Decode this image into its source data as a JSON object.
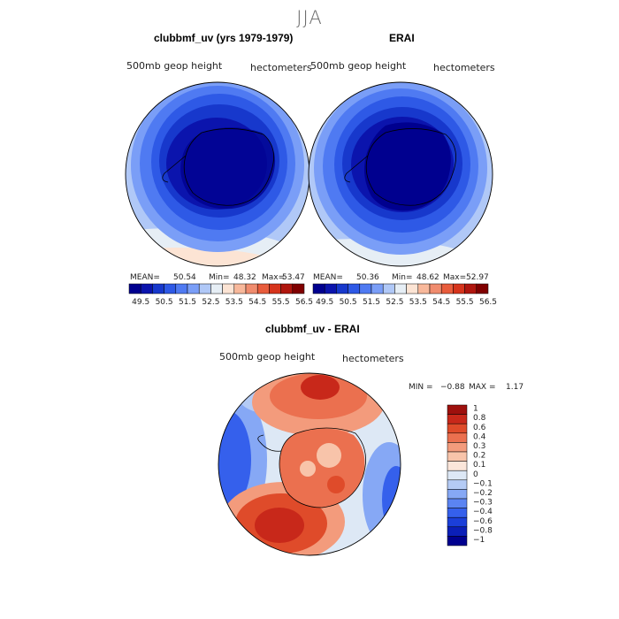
{
  "season": "JJA",
  "colors": {
    "full": [
      "#00008f",
      "#0b14ad",
      "#1738cc",
      "#2e59e6",
      "#4f7af2",
      "#7a9ef7",
      "#b0c8f7",
      "#e6eef5",
      "#fce4d4",
      "#f8b89b",
      "#f08c6e",
      "#e85c3c",
      "#d6341c",
      "#b0160e",
      "#800000"
    ],
    "diff": [
      "#00008f",
      "#0b1fb8",
      "#1b3fd9",
      "#3560ec",
      "#5b84f2",
      "#86a8f5",
      "#b4cbf5",
      "#dde8f5",
      "#fbe6da",
      "#f8c4aa",
      "#f39b7c",
      "#eb704f",
      "#df4b2a",
      "#c8281a",
      "#9e100d"
    ]
  },
  "panels": [
    {
      "title": "clubbmf_uv (yrs 1979-1979)",
      "left_label": "500mb  geop  height",
      "right_label": "hectometers",
      "stats": {
        "mean_label": "MEAN=",
        "mean": "50.54",
        "min_label": "Min=",
        "min": "48.32",
        "max_label": "Max=",
        "max": "53.47"
      }
    },
    {
      "title": "ERAI",
      "left_label": "500mb  geop  height",
      "right_label": "hectometers",
      "stats": {
        "mean_label": "MEAN=",
        "mean": "50.36",
        "min_label": "Min=",
        "min": "48.62",
        "max_label": "Max=",
        "max": "52.97"
      }
    },
    {
      "title": "clubbmf_uv - ERAI",
      "left_label": "500mb  geop  height",
      "right_label": "hectometers",
      "stats": {
        "min_label": "MIN =",
        "min": "−0.88",
        "max_label": "MAX =",
        "max": "1.17"
      }
    }
  ],
  "chart_data": [
    {
      "type": "heatmap",
      "title": "clubbmf_uv (yrs 1979-1979)",
      "projection": "south-polar stereographic",
      "field": "500mb geop height",
      "units": "hectometers",
      "mean": 50.54,
      "min": 48.32,
      "max": 53.47,
      "contour_levels": [
        49.5,
        50,
        50.5,
        51,
        51.5,
        52,
        52.5,
        53,
        53.5,
        54,
        54.5,
        55,
        55.5,
        56,
        56.5
      ],
      "colorbar_tick_labels": [
        "49.5",
        "50.5",
        "51.5",
        "52.5",
        "53.5",
        "54.5",
        "55.5",
        "56.5"
      ],
      "colorbar_orientation": "horizontal"
    },
    {
      "type": "heatmap",
      "title": "ERAI",
      "projection": "south-polar stereographic",
      "field": "500mb geop height",
      "units": "hectometers",
      "mean": 50.36,
      "min": 48.62,
      "max": 52.97,
      "contour_levels": [
        49.5,
        50,
        50.5,
        51,
        51.5,
        52,
        52.5,
        53,
        53.5,
        54,
        54.5,
        55,
        55.5,
        56,
        56.5
      ],
      "colorbar_tick_labels": [
        "49.5",
        "50.5",
        "51.5",
        "52.5",
        "53.5",
        "54.5",
        "55.5",
        "56.5"
      ],
      "colorbar_orientation": "horizontal"
    },
    {
      "type": "heatmap",
      "title": "clubbmf_uv - ERAI",
      "projection": "south-polar stereographic",
      "field": "500mb geop height",
      "units": "hectometers",
      "min": -0.88,
      "max": 1.17,
      "contour_levels": [
        -1,
        -0.8,
        -0.6,
        -0.4,
        -0.3,
        -0.2,
        -0.1,
        0,
        0.1,
        0.2,
        0.3,
        0.4,
        0.6,
        0.8,
        1
      ],
      "colorbar_tick_labels": [
        "1",
        "0.8",
        "0.6",
        "0.4",
        "0.3",
        "0.2",
        "0.1",
        "0",
        "−0.1",
        "−0.2",
        "−0.3",
        "−0.4",
        "−0.6",
        "−0.8",
        "−1"
      ],
      "colorbar_orientation": "vertical"
    }
  ]
}
